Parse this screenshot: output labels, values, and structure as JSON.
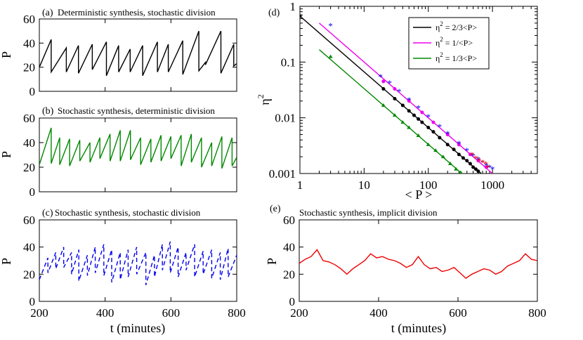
{
  "panels": {
    "a": {
      "label": "(a)",
      "title": "Deterministic synthesis, stochastic division",
      "ylabel": "P"
    },
    "b": {
      "label": "(b)",
      "title": "Stochastic synthesis, deterministic division",
      "ylabel": "P"
    },
    "c": {
      "label": "(c)",
      "title": "Stochastic synthesis, stochastic division",
      "ylabel": "P"
    },
    "d": {
      "label": "(d)",
      "xlabel": "< P >",
      "ylabel": "η",
      "ylabel_sup": "2"
    },
    "e": {
      "label": "(e)",
      "title": "Stochastic synthesis, implicit division",
      "ylabel": "P"
    }
  },
  "axis_text": {
    "y_ticks": [
      "0",
      "20",
      "40",
      "60"
    ],
    "x_ticks": [
      "200",
      "400",
      "600",
      "800"
    ],
    "xlabel_time": "t (minutes)",
    "d_y_ticks": [
      "0.001",
      "0.01",
      "0.1",
      "1"
    ],
    "d_x_ticks": [
      "1",
      "10",
      "100",
      "1000"
    ]
  },
  "legend": [
    {
      "prefix": "η",
      "sup": "2",
      "rest": " = 2/3<P>",
      "color": "#000000"
    },
    {
      "prefix": "η",
      "sup": "2",
      "rest": " = 1/<P>",
      "color": "#ee00ee"
    },
    {
      "prefix": "η",
      "sup": "2",
      "rest": " = 1/3<P>",
      "color": "#008800"
    }
  ],
  "chart_data": [
    {
      "panel": "a",
      "type": "line",
      "color": "#000000",
      "xlim": [
        200,
        800
      ],
      "ylim": [
        0,
        60
      ],
      "x": [
        200,
        236,
        236,
        282,
        282,
        319,
        319,
        361,
        361,
        404,
        404,
        441,
        441,
        476,
        476,
        514,
        514,
        559,
        559,
        592,
        592,
        636,
        636,
        685,
        685,
        705,
        705,
        752,
        752,
        791,
        791,
        800
      ],
      "values": [
        20,
        43,
        16,
        36,
        16,
        38,
        15,
        39,
        18,
        41,
        13,
        38,
        16,
        35,
        16,
        38,
        13,
        41,
        16,
        39,
        16,
        42,
        14,
        50,
        17,
        24,
        22,
        50,
        15,
        39,
        21,
        23
      ]
    },
    {
      "panel": "b",
      "type": "line",
      "color": "#008800",
      "xlim": [
        200,
        800
      ],
      "ylim": [
        0,
        60
      ],
      "x": [
        200,
        236,
        236,
        262,
        262,
        292,
        292,
        323,
        323,
        354,
        354,
        384,
        384,
        415,
        415,
        446,
        446,
        477,
        477,
        508,
        508,
        539,
        539,
        570,
        570,
        600,
        600,
        631,
        631,
        662,
        662,
        693,
        693,
        724,
        724,
        755,
        755,
        786,
        786,
        800
      ],
      "values": [
        22,
        52,
        23,
        44,
        22,
        43,
        21,
        42,
        25,
        40,
        24,
        44,
        27,
        47,
        25,
        50,
        25,
        50,
        26,
        44,
        22,
        43,
        24,
        46,
        25,
        45,
        27,
        46,
        21,
        47,
        24,
        44,
        20,
        40,
        21,
        45,
        19,
        44,
        21,
        28
      ]
    },
    {
      "panel": "c",
      "type": "line",
      "color": "#0000ee",
      "dashed": true,
      "xlim": [
        200,
        800
      ],
      "ylim": [
        0,
        60
      ],
      "x": [
        200,
        226,
        226,
        250,
        250,
        274,
        274,
        298,
        298,
        320,
        320,
        346,
        346,
        370,
        370,
        396,
        396,
        420,
        420,
        446,
        446,
        470,
        470,
        496,
        496,
        524,
        524,
        550,
        550,
        574,
        574,
        598,
        598,
        622,
        622,
        646,
        646,
        672,
        672,
        698,
        698,
        724,
        724,
        750,
        750,
        774,
        774,
        800
      ],
      "values": [
        16,
        32,
        21,
        36,
        24,
        40,
        25,
        36,
        20,
        38,
        15,
        34,
        19,
        40,
        21,
        42,
        19,
        38,
        14,
        36,
        16,
        38,
        18,
        40,
        20,
        36,
        12,
        34,
        18,
        42,
        23,
        44,
        21,
        40,
        18,
        36,
        23,
        42,
        18,
        37,
        20,
        38,
        17,
        36,
        16,
        39,
        18,
        34
      ]
    },
    {
      "panel": "d",
      "type": "scatter",
      "log_x": true,
      "log_y": true,
      "xlim": [
        1,
        5000
      ],
      "ylim": [
        0.001,
        1
      ],
      "xlabel": "< P >",
      "ylabel": "η^2",
      "series": [
        {
          "name": "η^2 = 2/3<P>",
          "color": "#000000",
          "line": [
            [
              1,
              0.667
            ],
            [
              667,
              0.001
            ]
          ],
          "points": [
            [
              1,
              0.667
            ],
            [
              20,
              0.033
            ],
            [
              30,
              0.022
            ],
            [
              40,
              0.0167
            ],
            [
              50,
              0.0133
            ],
            [
              60,
              0.0111
            ],
            [
              70,
              0.0095
            ],
            [
              80,
              0.0083
            ],
            [
              100,
              0.0067
            ],
            [
              120,
              0.0056
            ],
            [
              150,
              0.0044
            ],
            [
              200,
              0.0033
            ],
            [
              250,
              0.0027
            ],
            [
              300,
              0.0022
            ],
            [
              350,
              0.0019
            ],
            [
              400,
              0.0017
            ],
            [
              450,
              0.0015
            ],
            [
              500,
              0.0013
            ],
            [
              550,
              0.0012
            ],
            [
              600,
              0.0011
            ]
          ]
        },
        {
          "name": "η^2 = 1/<P>",
          "color": "#ee00ee",
          "line": [
            [
              2,
              0.5
            ],
            [
              1000,
              0.001
            ]
          ],
          "points": [
            [
              20,
              0.045
            ],
            [
              30,
              0.033
            ],
            [
              50,
              0.02
            ],
            [
              80,
              0.0125
            ],
            [
              120,
              0.0083
            ],
            [
              200,
              0.005
            ],
            [
              300,
              0.0033
            ],
            [
              450,
              0.0022
            ],
            [
              600,
              0.0017
            ],
            [
              800,
              0.0013
            ]
          ]
        },
        {
          "name": "η^2 = 1/3<P>",
          "color": "#008800",
          "line": [
            [
              2,
              0.167
            ],
            [
              333,
              0.001
            ]
          ],
          "points": [
            [
              3,
              0.125
            ],
            [
              20,
              0.0167
            ],
            [
              30,
              0.0111
            ],
            [
              40,
              0.0083
            ],
            [
              50,
              0.0067
            ],
            [
              70,
              0.0048
            ],
            [
              100,
              0.0033
            ],
            [
              130,
              0.0026
            ],
            [
              170,
              0.002
            ],
            [
              220,
              0.0015
            ],
            [
              270,
              0.0012
            ],
            [
              320,
              0.00104
            ]
          ]
        },
        {
          "name": "blue stars",
          "color": "#0000ee",
          "points": [
            [
              3,
              0.45
            ],
            [
              18,
              0.055
            ],
            [
              25,
              0.042
            ],
            [
              35,
              0.03
            ],
            [
              50,
              0.021
            ],
            [
              70,
              0.015
            ],
            [
              100,
              0.0105
            ],
            [
              150,
              0.007
            ],
            [
              200,
              0.0052
            ],
            [
              300,
              0.0035
            ],
            [
              400,
              0.0026
            ],
            [
              500,
              0.0021
            ],
            [
              600,
              0.0018
            ],
            [
              700,
              0.0016
            ],
            [
              800,
              0.0014
            ],
            [
              900,
              0.0013
            ],
            [
              1000,
              0.0012
            ]
          ]
        },
        {
          "name": "red stars",
          "color": "#ee0000",
          "points": [
            [
              480,
              0.0022
            ],
            [
              550,
              0.0019
            ],
            [
              620,
              0.0017
            ],
            [
              700,
              0.0016
            ],
            [
              780,
              0.0015
            ],
            [
              850,
              0.0013
            ]
          ]
        }
      ]
    },
    {
      "panel": "e",
      "type": "line",
      "color": "#ee0000",
      "xlim": [
        200,
        800
      ],
      "ylim": [
        0,
        60
      ],
      "x": [
        200,
        215,
        230,
        245,
        260,
        275,
        290,
        305,
        320,
        335,
        350,
        365,
        380,
        395,
        410,
        425,
        440,
        455,
        470,
        485,
        500,
        515,
        530,
        545,
        560,
        575,
        590,
        605,
        620,
        635,
        650,
        665,
        680,
        695,
        710,
        725,
        740,
        755,
        770,
        785,
        800
      ],
      "values": [
        28,
        31,
        33,
        38,
        30,
        29,
        27,
        24,
        20,
        24,
        27,
        30,
        35,
        32,
        33,
        31,
        30,
        28,
        25,
        27,
        33,
        27,
        24,
        25,
        22,
        23,
        25,
        21,
        17,
        20,
        22,
        24,
        23,
        20,
        22,
        26,
        28,
        30,
        35,
        31,
        30
      ]
    }
  ]
}
